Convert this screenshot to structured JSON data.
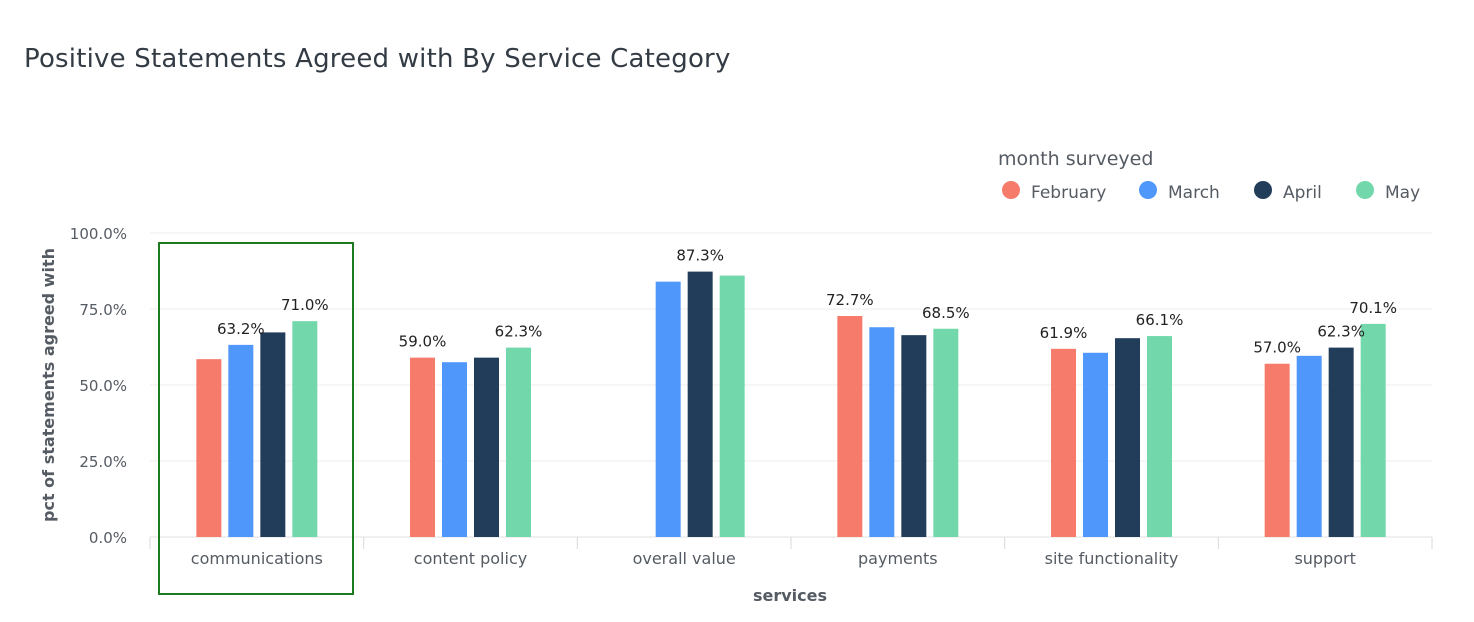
{
  "chart_data": {
    "type": "bar",
    "title": "Positive Statements Agreed with By Service Category",
    "xlabel": "services",
    "ylabel": "pct of statements agreed with",
    "ylim": [
      0,
      100
    ],
    "yticks": [
      "0.0%",
      "25.0%",
      "50.0%",
      "75.0%",
      "100.0%"
    ],
    "ytick_values": [
      0,
      25,
      50,
      75,
      100
    ],
    "legend_title": "month surveyed",
    "legend_position": "top-right",
    "grid": true,
    "categories": [
      "communications",
      "content policy",
      "overall value",
      "payments",
      "site functionality",
      "support"
    ],
    "series": [
      {
        "name": "February",
        "color": "#f77b6b",
        "values": [
          58.5,
          59.0,
          null,
          72.7,
          61.9,
          57.0
        ]
      },
      {
        "name": "March",
        "color": "#4f97fb",
        "values": [
          63.2,
          57.5,
          84.0,
          69.0,
          60.6,
          59.6
        ]
      },
      {
        "name": "April",
        "color": "#223d59",
        "values": [
          67.3,
          59.0,
          87.3,
          66.4,
          65.4,
          62.3
        ]
      },
      {
        "name": "May",
        "color": "#72d8ab",
        "values": [
          71.0,
          62.3,
          86.0,
          68.5,
          66.1,
          70.1
        ]
      }
    ],
    "data_labels": [
      {
        "category": 0,
        "series": 1,
        "text": "63.2%"
      },
      {
        "category": 0,
        "series": 3,
        "text": "71.0%"
      },
      {
        "category": 1,
        "series": 0,
        "text": "59.0%"
      },
      {
        "category": 1,
        "series": 3,
        "text": "62.3%"
      },
      {
        "category": 2,
        "series": 2,
        "text": "87.3%"
      },
      {
        "category": 3,
        "series": 0,
        "text": "72.7%"
      },
      {
        "category": 3,
        "series": 3,
        "text": "68.5%"
      },
      {
        "category": 4,
        "series": 0,
        "text": "61.9%"
      },
      {
        "category": 4,
        "series": 3,
        "text": "66.1%"
      },
      {
        "category": 5,
        "series": 0,
        "text": "57.0%"
      },
      {
        "category": 5,
        "series": 2,
        "text": "62.3%"
      },
      {
        "category": 5,
        "series": 3,
        "text": "70.1%"
      }
    ],
    "highlight": {
      "category": "communications",
      "color": "#1e7a1e"
    },
    "gridline_color": "#ececec"
  }
}
